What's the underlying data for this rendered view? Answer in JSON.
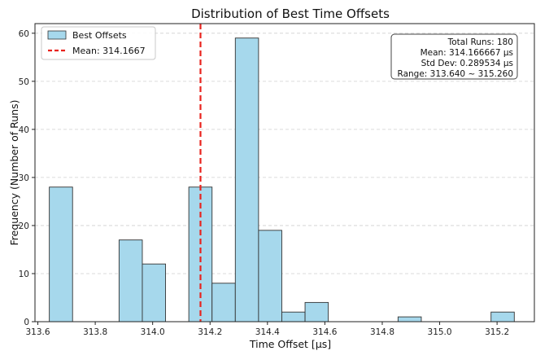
{
  "chart_data": {
    "type": "bar",
    "title": "Distribution of Best Time Offsets",
    "xlabel": "Time Offset [μs]",
    "ylabel": "Frequency (Number of Runs)",
    "xlim": [
      313.59,
      315.33
    ],
    "ylim": [
      0,
      62
    ],
    "xticks": [
      "313.6",
      "313.8",
      "314.0",
      "314.2",
      "314.4",
      "314.6",
      "314.8",
      "315.0",
      "315.2"
    ],
    "xtick_values": [
      313.6,
      313.8,
      314.0,
      314.2,
      314.4,
      314.6,
      314.8,
      315.0,
      315.2
    ],
    "yticks": [
      "0",
      "10",
      "20",
      "30",
      "40",
      "50",
      "60"
    ],
    "ytick_values": [
      0,
      10,
      20,
      30,
      40,
      50,
      60
    ],
    "grid": "horizontal dashed",
    "bin_edges": [
      313.64,
      313.721,
      313.802,
      313.883,
      313.964,
      314.045,
      314.126,
      314.207,
      314.288,
      314.369,
      314.45,
      314.531,
      314.612,
      314.693,
      314.774,
      314.855,
      314.936,
      315.017,
      315.098,
      315.179,
      315.26
    ],
    "values": [
      28,
      0,
      0,
      17,
      12,
      0,
      28,
      8,
      59,
      19,
      2,
      4,
      0,
      0,
      0,
      1,
      0,
      0,
      0,
      2
    ],
    "bar_color": "#a6d8ec",
    "bar_edge_color": "#333333",
    "mean_line": {
      "value": 314.1667,
      "color": "#e8231d",
      "style": "dashed"
    },
    "legend": {
      "placement": "top-left",
      "entries": [
        {
          "label": "Best Offsets",
          "kind": "patch"
        },
        {
          "label": "Mean: 314.1667",
          "kind": "dashed-line"
        }
      ]
    },
    "stats_box": {
      "placement": "top-right",
      "lines": [
        "Total Runs: 180",
        "Mean: 314.166667 μs",
        "Std Dev: 0.289534 μs",
        "Range: 313.640 ~ 315.260"
      ]
    }
  }
}
